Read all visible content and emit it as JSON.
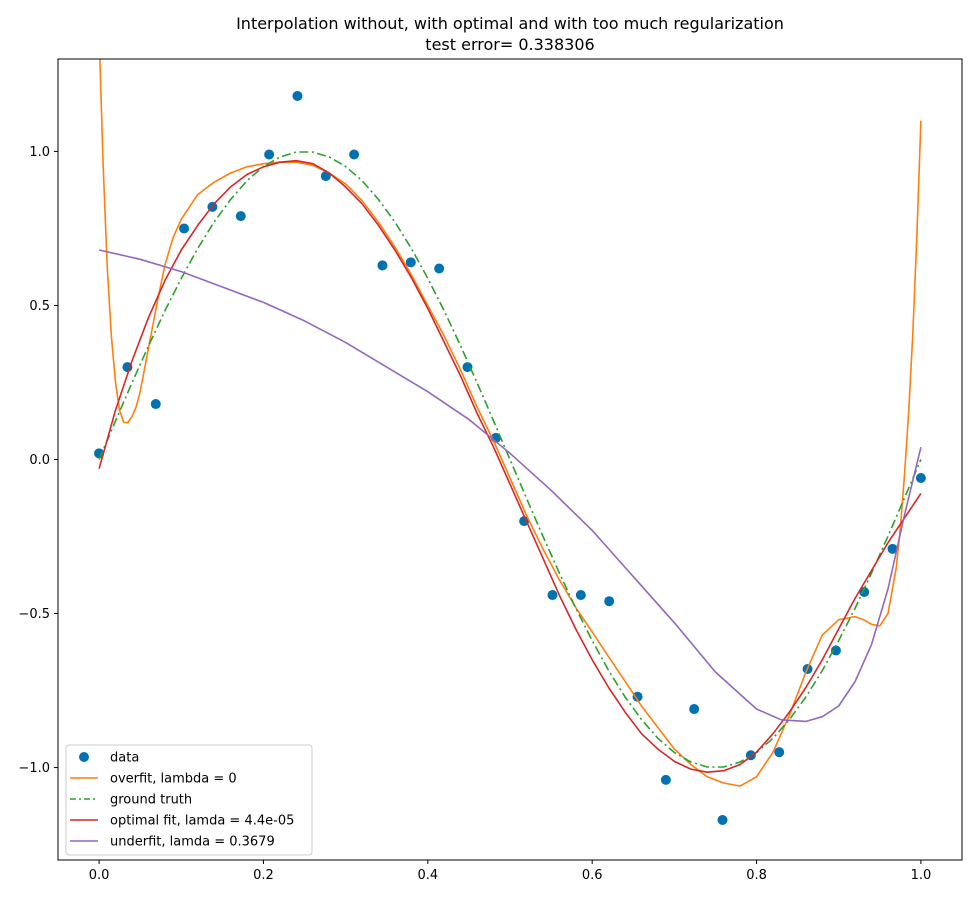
{
  "chart_data": {
    "type": "line",
    "title": "Interpolation without, with optimal and with too much regularization",
    "subtitle": "test error= 0.338306",
    "xlabel": "",
    "ylabel": "",
    "xlim": [
      -0.05,
      1.05
    ],
    "ylim": [
      -1.3,
      1.3
    ],
    "xticks": [
      0.0,
      0.2,
      0.4,
      0.6,
      0.8,
      1.0
    ],
    "xtick_labels": [
      "0.0",
      "0.2",
      "0.4",
      "0.6",
      "0.8",
      "1.0"
    ],
    "yticks": [
      -1.0,
      -0.5,
      0.0,
      0.5,
      1.0
    ],
    "ytick_labels": [
      "−1.0",
      "−0.5",
      "0.0",
      "0.5",
      "1.0"
    ],
    "grid": false,
    "legend_placement": "lower-left",
    "series": [
      {
        "name": "data",
        "kind": "scatter",
        "color": "#0072b2",
        "x": [
          0.0,
          0.0345,
          0.069,
          0.1034,
          0.1379,
          0.1724,
          0.2069,
          0.2414,
          0.2759,
          0.3103,
          0.3448,
          0.3793,
          0.4138,
          0.4483,
          0.4828,
          0.5172,
          0.5517,
          0.5862,
          0.6207,
          0.6552,
          0.6897,
          0.7241,
          0.7586,
          0.7931,
          0.8276,
          0.8621,
          0.8966,
          0.931,
          0.9655,
          1.0
        ],
        "y": [
          0.02,
          0.3,
          0.18,
          0.75,
          0.82,
          0.79,
          0.99,
          1.18,
          0.92,
          0.99,
          0.63,
          0.64,
          0.62,
          0.3,
          0.07,
          -0.2,
          -0.44,
          -0.44,
          -0.46,
          -0.77,
          -1.04,
          -0.81,
          -1.17,
          -0.96,
          -0.95,
          -0.68,
          -0.62,
          -0.43,
          -0.29,
          -0.06
        ]
      },
      {
        "name": "overfit, lambda = 0",
        "kind": "line",
        "color": "#ff7f0e",
        "dash": "solid",
        "x": [
          0.0,
          0.005,
          0.01,
          0.015,
          0.02,
          0.025,
          0.03,
          0.035,
          0.04,
          0.045,
          0.05,
          0.06,
          0.07,
          0.08,
          0.09,
          0.1,
          0.12,
          0.14,
          0.16,
          0.18,
          0.2,
          0.22,
          0.24,
          0.26,
          0.28,
          0.3,
          0.32,
          0.34,
          0.36,
          0.38,
          0.4,
          0.42,
          0.44,
          0.46,
          0.48,
          0.5,
          0.52,
          0.54,
          0.56,
          0.58,
          0.6,
          0.62,
          0.64,
          0.66,
          0.68,
          0.7,
          0.72,
          0.74,
          0.76,
          0.78,
          0.8,
          0.82,
          0.84,
          0.86,
          0.88,
          0.9,
          0.92,
          0.93,
          0.94,
          0.95,
          0.96,
          0.97,
          0.975,
          0.98,
          0.985,
          0.99,
          0.995,
          1.0
        ],
        "y": [
          1.38,
          0.95,
          0.62,
          0.4,
          0.25,
          0.16,
          0.12,
          0.12,
          0.14,
          0.17,
          0.22,
          0.36,
          0.5,
          0.63,
          0.72,
          0.78,
          0.86,
          0.9,
          0.93,
          0.95,
          0.96,
          0.965,
          0.965,
          0.955,
          0.93,
          0.895,
          0.84,
          0.77,
          0.69,
          0.6,
          0.5,
          0.4,
          0.29,
          0.17,
          0.06,
          -0.06,
          -0.18,
          -0.29,
          -0.39,
          -0.48,
          -0.56,
          -0.64,
          -0.72,
          -0.8,
          -0.87,
          -0.94,
          -0.99,
          -1.03,
          -1.05,
          -1.06,
          -1.03,
          -0.95,
          -0.83,
          -0.69,
          -0.57,
          -0.52,
          -0.51,
          -0.52,
          -0.535,
          -0.54,
          -0.5,
          -0.35,
          -0.22,
          -0.05,
          0.15,
          0.4,
          0.72,
          1.1
        ]
      },
      {
        "name": "ground truth",
        "kind": "line",
        "color": "#2ca02c",
        "dash": "dashdot",
        "x": [
          0.0,
          0.02,
          0.04,
          0.06,
          0.08,
          0.1,
          0.12,
          0.14,
          0.16,
          0.18,
          0.2,
          0.22,
          0.24,
          0.26,
          0.28,
          0.3,
          0.32,
          0.34,
          0.36,
          0.38,
          0.4,
          0.42,
          0.44,
          0.46,
          0.48,
          0.5,
          0.52,
          0.54,
          0.56,
          0.58,
          0.6,
          0.62,
          0.64,
          0.66,
          0.68,
          0.7,
          0.72,
          0.74,
          0.76,
          0.78,
          0.8,
          0.82,
          0.84,
          0.86,
          0.88,
          0.9,
          0.92,
          0.94,
          0.96,
          0.98,
          1.0
        ],
        "y": [
          0.0,
          0.125,
          0.249,
          0.368,
          0.482,
          0.588,
          0.685,
          0.771,
          0.844,
          0.905,
          0.951,
          0.982,
          0.998,
          0.998,
          0.982,
          0.951,
          0.905,
          0.844,
          0.771,
          0.685,
          0.588,
          0.482,
          0.368,
          0.249,
          0.125,
          0.0,
          -0.125,
          -0.249,
          -0.368,
          -0.482,
          -0.588,
          -0.685,
          -0.771,
          -0.844,
          -0.905,
          -0.951,
          -0.982,
          -0.998,
          -0.998,
          -0.982,
          -0.951,
          -0.905,
          -0.844,
          -0.771,
          -0.685,
          -0.588,
          -0.482,
          -0.368,
          -0.249,
          -0.125,
          0.0
        ]
      },
      {
        "name": "optimal fit, lamda = 4.4e-05",
        "kind": "line",
        "color": "#d62728",
        "dash": "solid",
        "x": [
          0.0,
          0.02,
          0.04,
          0.06,
          0.08,
          0.1,
          0.12,
          0.14,
          0.16,
          0.18,
          0.2,
          0.22,
          0.24,
          0.26,
          0.28,
          0.3,
          0.32,
          0.34,
          0.36,
          0.38,
          0.4,
          0.42,
          0.44,
          0.46,
          0.48,
          0.5,
          0.52,
          0.54,
          0.56,
          0.58,
          0.6,
          0.62,
          0.64,
          0.66,
          0.68,
          0.7,
          0.72,
          0.74,
          0.76,
          0.78,
          0.8,
          0.82,
          0.84,
          0.86,
          0.88,
          0.9,
          0.92,
          0.94,
          0.96,
          0.98,
          1.0
        ],
        "y": [
          -0.03,
          0.16,
          0.32,
          0.46,
          0.58,
          0.68,
          0.76,
          0.83,
          0.885,
          0.925,
          0.95,
          0.965,
          0.97,
          0.96,
          0.93,
          0.885,
          0.83,
          0.76,
          0.68,
          0.59,
          0.49,
          0.38,
          0.27,
          0.15,
          0.04,
          -0.08,
          -0.2,
          -0.32,
          -0.44,
          -0.55,
          -0.65,
          -0.74,
          -0.82,
          -0.89,
          -0.94,
          -0.98,
          -1.005,
          -1.015,
          -1.01,
          -0.99,
          -0.95,
          -0.89,
          -0.82,
          -0.74,
          -0.65,
          -0.55,
          -0.45,
          -0.36,
          -0.27,
          -0.19,
          -0.11
        ]
      },
      {
        "name": "underfit, lamda = 0.3679",
        "kind": "line",
        "color": "#9467bd",
        "dash": "solid",
        "x": [
          0.0,
          0.05,
          0.1,
          0.15,
          0.2,
          0.25,
          0.3,
          0.35,
          0.4,
          0.45,
          0.5,
          0.55,
          0.6,
          0.65,
          0.7,
          0.75,
          0.8,
          0.83,
          0.86,
          0.88,
          0.9,
          0.92,
          0.94,
          0.96,
          0.98,
          1.0
        ],
        "y": [
          0.68,
          0.65,
          0.61,
          0.56,
          0.51,
          0.45,
          0.38,
          0.3,
          0.22,
          0.13,
          0.02,
          -0.1,
          -0.23,
          -0.38,
          -0.53,
          -0.69,
          -0.81,
          -0.845,
          -0.85,
          -0.835,
          -0.8,
          -0.72,
          -0.6,
          -0.42,
          -0.18,
          0.04
        ]
      }
    ]
  }
}
